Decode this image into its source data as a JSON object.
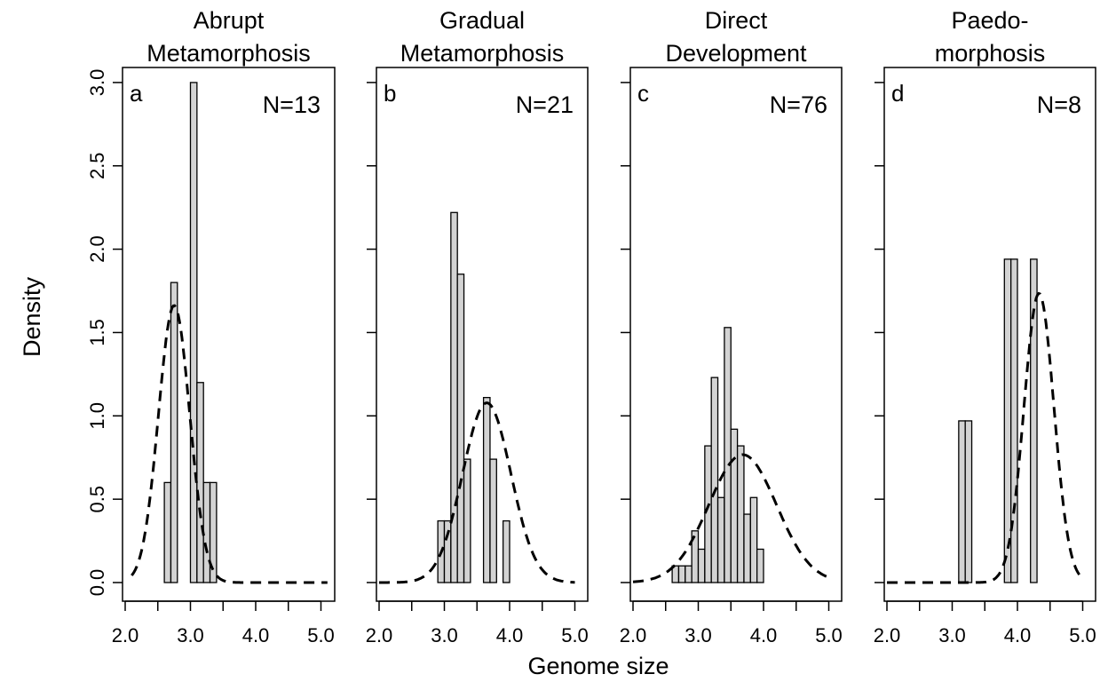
{
  "chart_data": [
    {
      "type": "bar",
      "panel_label": "a",
      "title_lines": [
        "Abrupt",
        "Metamorphosis"
      ],
      "n_label": "N=13",
      "bin_width": 0.1,
      "bins_start": [
        2.6,
        2.7,
        2.8,
        2.9,
        3.0,
        3.1,
        3.2,
        3.3,
        3.4
      ],
      "values": [
        0.6,
        1.8,
        0.0,
        0.0,
        3.0,
        1.2,
        0.6,
        0.6,
        0.0
      ],
      "density_curve": {
        "style": "dashed",
        "mean": 2.75,
        "sd": 0.24,
        "x_range": [
          2.1,
          5.1
        ]
      },
      "xlim": [
        2.0,
        5.0
      ],
      "ylim": [
        0.0,
        3.0
      ]
    },
    {
      "type": "bar",
      "panel_label": "b",
      "title_lines": [
        "Gradual",
        "Metamorphosis"
      ],
      "n_label": "N=21",
      "bin_width": 0.1,
      "bins_start": [
        2.9,
        3.0,
        3.1,
        3.2,
        3.3,
        3.4,
        3.5,
        3.6,
        3.7,
        3.8,
        3.9,
        4.0,
        4.1,
        4.2,
        4.3
      ],
      "values": [
        0.37,
        0.37,
        2.22,
        1.85,
        0.74,
        0.0,
        0.0,
        1.11,
        0.74,
        0.0,
        0.37,
        0.0,
        0.0,
        0.0,
        0.0
      ],
      "density_curve": {
        "style": "dashed",
        "mean": 3.65,
        "sd": 0.37,
        "x_range": [
          2.0,
          5.0
        ]
      },
      "xlim": [
        2.0,
        5.0
      ],
      "ylim": [
        0.0,
        3.0
      ]
    },
    {
      "type": "bar",
      "panel_label": "c",
      "title_lines": [
        "Direct",
        "Development"
      ],
      "n_label": "N=76",
      "bin_width": 0.1,
      "bins_start": [
        2.6,
        2.7,
        2.8,
        2.9,
        3.0,
        3.1,
        3.2,
        3.3,
        3.4,
        3.5,
        3.6,
        3.7,
        3.8,
        3.9,
        4.0,
        4.1,
        4.2,
        4.3
      ],
      "values": [
        0.1,
        0.1,
        0.1,
        0.31,
        0.2,
        0.82,
        1.23,
        0.51,
        1.53,
        0.92,
        0.82,
        0.41,
        0.51,
        0.2,
        0.0,
        0.0,
        0.0,
        0.0
      ],
      "density_curve": {
        "style": "dashed",
        "mean": 3.68,
        "sd": 0.52,
        "x_range": [
          2.0,
          5.0
        ]
      },
      "xlim": [
        2.0,
        5.0
      ],
      "ylim": [
        0.0,
        3.0
      ]
    },
    {
      "type": "bar",
      "panel_label": "d",
      "title_lines": [
        "Paedo-",
        "morphosis"
      ],
      "n_label": "N=8",
      "bin_width": 0.1,
      "bins_start": [
        3.1,
        3.2,
        3.3,
        3.4,
        3.5,
        3.6,
        3.7,
        3.8,
        3.9,
        4.0,
        4.1,
        4.2,
        4.3,
        4.4
      ],
      "values": [
        0.97,
        0.97,
        0.0,
        0.0,
        0.0,
        0.0,
        0.0,
        1.94,
        1.94,
        0.0,
        0.0,
        1.94,
        0.0,
        0.0
      ],
      "density_curve": {
        "style": "dashed",
        "mean": 4.33,
        "sd": 0.23,
        "x_range": [
          2.0,
          5.0
        ]
      },
      "xlim": [
        2.0,
        5.0
      ],
      "ylim": [
        0.0,
        3.0
      ]
    }
  ],
  "axes": {
    "xlabel": "Genome size",
    "ylabel": "Density",
    "x_ticks": [
      "2.0",
      "3.0",
      "4.0",
      "5.0"
    ],
    "y_ticks": [
      "0.0",
      "0.5",
      "1.0",
      "1.5",
      "2.0",
      "2.5",
      "3.0"
    ]
  },
  "colors": {
    "bar_fill": "#d3d3d3",
    "bar_stroke": "#000000",
    "curve": "#000000"
  }
}
